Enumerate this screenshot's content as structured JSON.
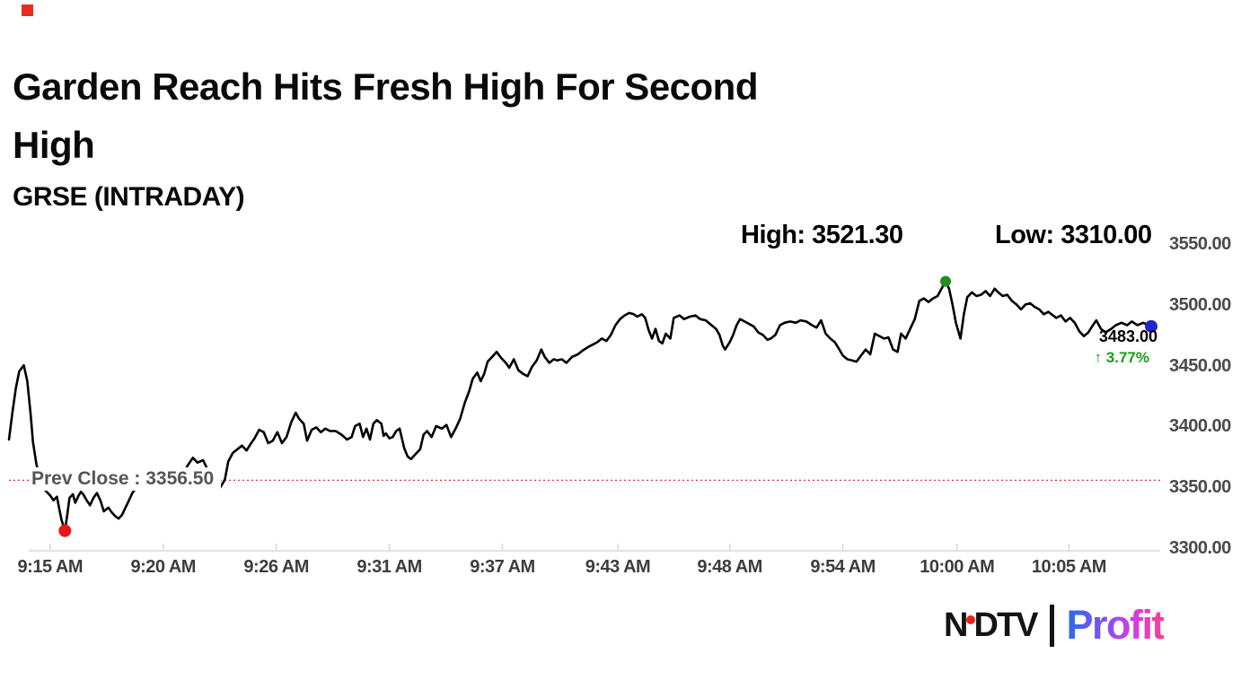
{
  "badge_color": "#ea2c1f",
  "header": {
    "title_line1": "Garden Reach Hits Fresh High For Second",
    "title_line2": "High",
    "subtitle": "GRSE (INTRADAY)"
  },
  "stats": {
    "high_label": "High: 3521.30",
    "low_label": "Low: 3310.00"
  },
  "callout": {
    "price": "3483.00",
    "arrow": "↑",
    "change": "3.77%",
    "change_color": "#16a016"
  },
  "prev_close_label": "Prev Close : 3356.50",
  "logo": {
    "ndtv_n": "N",
    "ndtv_dtv": "DTV",
    "dot_color": "#e8231a",
    "profit": "Profit",
    "profit_gradient": [
      "#2b6bea",
      "#7d52f4",
      "#d23de3",
      "#ff3f8e"
    ]
  },
  "chart_data": {
    "type": "line",
    "title": "GRSE (INTRADAY)",
    "high": 3521.3,
    "low": 3310.0,
    "last": 3483.0,
    "change_pct": 3.77,
    "prev_close": 3356.5,
    "ylim": [
      3300,
      3550
    ],
    "y_ticks": [
      3550,
      3500,
      3450,
      3400,
      3350,
      3300
    ],
    "x_ticks": [
      {
        "label": "9:15 AM",
        "f": 0.036
      },
      {
        "label": "9:20 AM",
        "f": 0.135
      },
      {
        "label": "9:26 AM",
        "f": 0.234
      },
      {
        "label": "9:31 AM",
        "f": 0.333
      },
      {
        "label": "9:37 AM",
        "f": 0.432
      },
      {
        "label": "9:43 AM",
        "f": 0.533
      },
      {
        "label": "9:48 AM",
        "f": 0.631
      },
      {
        "label": "9:54 AM",
        "f": 0.73
      },
      {
        "label": "10:00 AM",
        "f": 0.83
      },
      {
        "label": "10:05 AM",
        "f": 0.928
      }
    ],
    "line_color": "#000000",
    "prev_close_line_color": "#e23333",
    "axis_color": "#d9d9d9",
    "grid": false,
    "legend": false,
    "markers": [
      {
        "name": "low-marker-dot",
        "f": 0.049,
        "price": 3315,
        "color": "#e81717",
        "r": 7
      },
      {
        "name": "high-marker-dot",
        "f": 0.82,
        "price": 3520,
        "color": "#1e8e1e",
        "r": 6
      },
      {
        "name": "last-marker-dot",
        "f": 1.0,
        "price": 3483,
        "color": "#2323cc",
        "r": 7
      }
    ],
    "points": [
      [
        0.0,
        3390
      ],
      [
        0.003,
        3412
      ],
      [
        0.006,
        3432
      ],
      [
        0.009,
        3446
      ],
      [
        0.013,
        3451
      ],
      [
        0.016,
        3438
      ],
      [
        0.019,
        3410
      ],
      [
        0.021,
        3388
      ],
      [
        0.024,
        3370
      ],
      [
        0.027,
        3357
      ],
      [
        0.03,
        3350
      ],
      [
        0.033,
        3347
      ],
      [
        0.036,
        3344
      ],
      [
        0.039,
        3340
      ],
      [
        0.042,
        3343
      ],
      [
        0.044,
        3333
      ],
      [
        0.046,
        3324
      ],
      [
        0.049,
        3315
      ],
      [
        0.051,
        3328
      ],
      [
        0.053,
        3342
      ],
      [
        0.056,
        3345
      ],
      [
        0.058,
        3338
      ],
      [
        0.061,
        3344
      ],
      [
        0.063,
        3347
      ],
      [
        0.065,
        3345
      ],
      [
        0.068,
        3340
      ],
      [
        0.071,
        3336
      ],
      [
        0.074,
        3342
      ],
      [
        0.077,
        3346
      ],
      [
        0.08,
        3340
      ],
      [
        0.083,
        3331
      ],
      [
        0.087,
        3334
      ],
      [
        0.09,
        3330
      ],
      [
        0.093,
        3327
      ],
      [
        0.096,
        3325
      ],
      [
        0.099,
        3328
      ],
      [
        0.102,
        3334
      ],
      [
        0.105,
        3340
      ],
      [
        0.108,
        3346
      ],
      [
        0.112,
        3351
      ],
      [
        0.115,
        3355
      ],
      [
        0.12,
        3357
      ],
      [
        0.124,
        3355
      ],
      [
        0.13,
        3357
      ],
      [
        0.135,
        3356
      ],
      [
        0.141,
        3354
      ],
      [
        0.146,
        3357
      ],
      [
        0.152,
        3360
      ],
      [
        0.156,
        3368
      ],
      [
        0.161,
        3375
      ],
      [
        0.165,
        3371
      ],
      [
        0.17,
        3373
      ],
      [
        0.175,
        3363
      ],
      [
        0.179,
        3354
      ],
      [
        0.184,
        3349
      ],
      [
        0.189,
        3357
      ],
      [
        0.192,
        3372
      ],
      [
        0.196,
        3379
      ],
      [
        0.2,
        3382
      ],
      [
        0.204,
        3385
      ],
      [
        0.208,
        3381
      ],
      [
        0.212,
        3387
      ],
      [
        0.215,
        3391
      ],
      [
        0.219,
        3398
      ],
      [
        0.223,
        3396
      ],
      [
        0.227,
        3387
      ],
      [
        0.231,
        3389
      ],
      [
        0.235,
        3396
      ],
      [
        0.239,
        3387
      ],
      [
        0.243,
        3392
      ],
      [
        0.247,
        3404
      ],
      [
        0.251,
        3412
      ],
      [
        0.254,
        3407
      ],
      [
        0.258,
        3403
      ],
      [
        0.261,
        3389
      ],
      [
        0.265,
        3398
      ],
      [
        0.269,
        3400
      ],
      [
        0.273,
        3396
      ],
      [
        0.277,
        3399
      ],
      [
        0.281,
        3397
      ],
      [
        0.286,
        3397
      ],
      [
        0.291,
        3394
      ],
      [
        0.296,
        3390
      ],
      [
        0.3,
        3392
      ],
      [
        0.303,
        3401
      ],
      [
        0.307,
        3403
      ],
      [
        0.31,
        3392
      ],
      [
        0.313,
        3399
      ],
      [
        0.316,
        3390
      ],
      [
        0.319,
        3403
      ],
      [
        0.322,
        3406
      ],
      [
        0.326,
        3403
      ],
      [
        0.328,
        3393
      ],
      [
        0.33,
        3395
      ],
      [
        0.333,
        3391
      ],
      [
        0.336,
        3392
      ],
      [
        0.339,
        3397
      ],
      [
        0.342,
        3399
      ],
      [
        0.346,
        3383
      ],
      [
        0.349,
        3376
      ],
      [
        0.352,
        3374
      ],
      [
        0.356,
        3378
      ],
      [
        0.36,
        3382
      ],
      [
        0.363,
        3394
      ],
      [
        0.366,
        3397
      ],
      [
        0.37,
        3392
      ],
      [
        0.374,
        3401
      ],
      [
        0.379,
        3399
      ],
      [
        0.383,
        3402
      ],
      [
        0.387,
        3392
      ],
      [
        0.391,
        3399
      ],
      [
        0.395,
        3407
      ],
      [
        0.399,
        3420
      ],
      [
        0.403,
        3430
      ],
      [
        0.406,
        3440
      ],
      [
        0.41,
        3445
      ],
      [
        0.413,
        3438
      ],
      [
        0.416,
        3444
      ],
      [
        0.419,
        3454
      ],
      [
        0.423,
        3458
      ],
      [
        0.427,
        3462
      ],
      [
        0.431,
        3457
      ],
      [
        0.435,
        3453
      ],
      [
        0.438,
        3449
      ],
      [
        0.442,
        3456
      ],
      [
        0.446,
        3447
      ],
      [
        0.45,
        3444
      ],
      [
        0.454,
        3442
      ],
      [
        0.458,
        3450
      ],
      [
        0.462,
        3455
      ],
      [
        0.466,
        3464
      ],
      [
        0.469,
        3458
      ],
      [
        0.473,
        3453
      ],
      [
        0.477,
        3456
      ],
      [
        0.48,
        3455
      ],
      [
        0.484,
        3456
      ],
      [
        0.488,
        3453
      ],
      [
        0.493,
        3458
      ],
      [
        0.498,
        3460
      ],
      [
        0.502,
        3463
      ],
      [
        0.507,
        3466
      ],
      [
        0.511,
        3468
      ],
      [
        0.515,
        3470
      ],
      [
        0.519,
        3473
      ],
      [
        0.523,
        3471
      ],
      [
        0.527,
        3476
      ],
      [
        0.531,
        3484
      ],
      [
        0.535,
        3489
      ],
      [
        0.539,
        3492
      ],
      [
        0.543,
        3494
      ],
      [
        0.547,
        3493
      ],
      [
        0.55,
        3491
      ],
      [
        0.554,
        3493
      ],
      [
        0.557,
        3490
      ],
      [
        0.56,
        3480
      ],
      [
        0.563,
        3473
      ],
      [
        0.566,
        3481
      ],
      [
        0.569,
        3471
      ],
      [
        0.572,
        3469
      ],
      [
        0.575,
        3477
      ],
      [
        0.579,
        3473
      ],
      [
        0.582,
        3490
      ],
      [
        0.587,
        3492
      ],
      [
        0.591,
        3489
      ],
      [
        0.596,
        3491
      ],
      [
        0.601,
        3492
      ],
      [
        0.605,
        3489
      ],
      [
        0.61,
        3488
      ],
      [
        0.615,
        3484
      ],
      [
        0.619,
        3481
      ],
      [
        0.622,
        3476
      ],
      [
        0.625,
        3467
      ],
      [
        0.627,
        3464
      ],
      [
        0.631,
        3470
      ],
      [
        0.634,
        3476
      ],
      [
        0.637,
        3484
      ],
      [
        0.64,
        3489
      ],
      [
        0.644,
        3487
      ],
      [
        0.648,
        3485
      ],
      [
        0.652,
        3483
      ],
      [
        0.656,
        3478
      ],
      [
        0.66,
        3476
      ],
      [
        0.664,
        3472
      ],
      [
        0.667,
        3473
      ],
      [
        0.671,
        3476
      ],
      [
        0.675,
        3484
      ],
      [
        0.679,
        3486
      ],
      [
        0.684,
        3487
      ],
      [
        0.689,
        3486
      ],
      [
        0.693,
        3488
      ],
      [
        0.698,
        3487
      ],
      [
        0.703,
        3484
      ],
      [
        0.707,
        3482
      ],
      [
        0.711,
        3488
      ],
      [
        0.715,
        3477
      ],
      [
        0.719,
        3473
      ],
      [
        0.723,
        3470
      ],
      [
        0.727,
        3464
      ],
      [
        0.73,
        3459
      ],
      [
        0.734,
        3456
      ],
      [
        0.738,
        3455
      ],
      [
        0.742,
        3454
      ],
      [
        0.746,
        3459
      ],
      [
        0.75,
        3464
      ],
      [
        0.754,
        3460
      ],
      [
        0.758,
        3477
      ],
      [
        0.762,
        3475
      ],
      [
        0.766,
        3473
      ],
      [
        0.77,
        3474
      ],
      [
        0.774,
        3464
      ],
      [
        0.778,
        3462
      ],
      [
        0.781,
        3477
      ],
      [
        0.785,
        3473
      ],
      [
        0.789,
        3481
      ],
      [
        0.793,
        3489
      ],
      [
        0.797,
        3504
      ],
      [
        0.801,
        3506
      ],
      [
        0.805,
        3503
      ],
      [
        0.809,
        3506
      ],
      [
        0.813,
        3508
      ],
      [
        0.817,
        3515
      ],
      [
        0.82,
        3520
      ],
      [
        0.823,
        3514
      ],
      [
        0.826,
        3501
      ],
      [
        0.829,
        3486
      ],
      [
        0.833,
        3473
      ],
      [
        0.836,
        3493
      ],
      [
        0.839,
        3507
      ],
      [
        0.843,
        3511
      ],
      [
        0.847,
        3508
      ],
      [
        0.851,
        3509
      ],
      [
        0.855,
        3512
      ],
      [
        0.859,
        3508
      ],
      [
        0.863,
        3514
      ],
      [
        0.866,
        3511
      ],
      [
        0.87,
        3508
      ],
      [
        0.874,
        3509
      ],
      [
        0.878,
        3504
      ],
      [
        0.882,
        3501
      ],
      [
        0.886,
        3497
      ],
      [
        0.89,
        3501
      ],
      [
        0.894,
        3502
      ],
      [
        0.898,
        3499
      ],
      [
        0.902,
        3497
      ],
      [
        0.906,
        3493
      ],
      [
        0.91,
        3495
      ],
      [
        0.914,
        3492
      ],
      [
        0.917,
        3490
      ],
      [
        0.921,
        3492
      ],
      [
        0.925,
        3487
      ],
      [
        0.929,
        3490
      ],
      [
        0.933,
        3486
      ],
      [
        0.937,
        3479
      ],
      [
        0.941,
        3475
      ],
      [
        0.945,
        3478
      ],
      [
        0.949,
        3484
      ],
      [
        0.952,
        3488
      ],
      [
        0.956,
        3481
      ],
      [
        0.96,
        3478
      ],
      [
        0.965,
        3481
      ],
      [
        0.969,
        3484
      ],
      [
        0.974,
        3486
      ],
      [
        0.979,
        3484
      ],
      [
        0.983,
        3487
      ],
      [
        0.988,
        3484
      ],
      [
        0.993,
        3486
      ],
      [
        1.0,
        3483
      ]
    ]
  }
}
